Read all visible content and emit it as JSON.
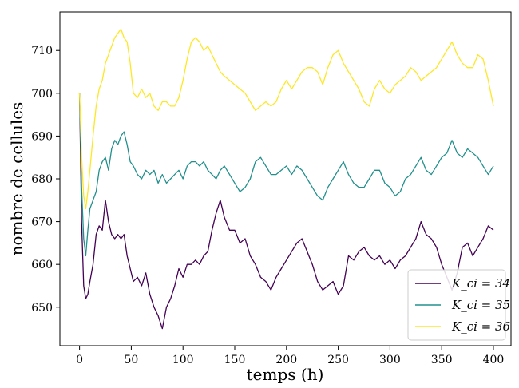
{
  "chart_data": {
    "type": "line",
    "title": "",
    "xlabel": "temps (h)",
    "ylabel": "nombre de cellules",
    "xlim": [
      -19,
      417
    ],
    "ylim": [
      641,
      719
    ],
    "xticks": [
      0,
      50,
      100,
      150,
      200,
      250,
      300,
      350,
      400
    ],
    "yticks": [
      650,
      660,
      670,
      680,
      690,
      700,
      710
    ],
    "grid": false,
    "legend_position": "lower-right",
    "series": [
      {
        "name": "K_ci = 34",
        "color": "#440154",
        "x": [
          0,
          2,
          4,
          6,
          8,
          10,
          13,
          16,
          19,
          22,
          25,
          28,
          31,
          34,
          37,
          40,
          43,
          46,
          49,
          52,
          56,
          60,
          64,
          68,
          72,
          76,
          80,
          84,
          88,
          92,
          96,
          100,
          104,
          108,
          112,
          116,
          120,
          124,
          128,
          132,
          136,
          140,
          145,
          150,
          155,
          160,
          165,
          170,
          175,
          180,
          185,
          190,
          195,
          200,
          205,
          210,
          215,
          220,
          225,
          230,
          235,
          240,
          245,
          250,
          255,
          260,
          265,
          270,
          275,
          280,
          285,
          290,
          295,
          300,
          305,
          310,
          315,
          320,
          325,
          330,
          335,
          340,
          345,
          350,
          355,
          360,
          365,
          370,
          375,
          380,
          385,
          390,
          395,
          400
        ],
        "y": [
          700,
          670,
          655,
          652,
          653,
          656,
          660,
          667,
          669,
          668,
          675,
          670,
          667,
          666,
          667,
          666,
          667,
          662,
          659,
          656,
          657,
          655,
          658,
          653,
          650,
          648,
          645,
          650,
          652,
          655,
          659,
          657,
          660,
          660,
          661,
          660,
          662,
          663,
          668,
          672,
          675,
          671,
          668,
          668,
          665,
          666,
          662,
          660,
          657,
          656,
          654,
          657,
          659,
          661,
          663,
          665,
          666,
          663,
          660,
          656,
          654,
          655,
          656,
          653,
          655,
          662,
          661,
          663,
          664,
          662,
          661,
          662,
          660,
          661,
          659,
          661,
          662,
          664,
          666,
          670,
          667,
          666,
          664,
          660,
          657,
          654,
          658,
          664,
          665,
          662,
          664,
          666,
          669,
          668
        ]
      },
      {
        "name": "K_ci = 35",
        "color": "#21908d",
        "x": [
          0,
          2,
          4,
          6,
          8,
          10,
          13,
          16,
          19,
          22,
          25,
          28,
          31,
          34,
          37,
          40,
          43,
          46,
          49,
          52,
          56,
          60,
          64,
          68,
          72,
          76,
          80,
          84,
          88,
          92,
          96,
          100,
          104,
          108,
          112,
          116,
          120,
          124,
          128,
          132,
          136,
          140,
          145,
          150,
          155,
          160,
          165,
          170,
          175,
          180,
          185,
          190,
          195,
          200,
          205,
          210,
          215,
          220,
          225,
          230,
          235,
          240,
          245,
          250,
          255,
          260,
          265,
          270,
          275,
          280,
          285,
          290,
          295,
          300,
          305,
          310,
          315,
          320,
          325,
          330,
          335,
          340,
          345,
          350,
          355,
          360,
          365,
          370,
          375,
          380,
          385,
          390,
          395,
          400
        ],
        "y": [
          700,
          678,
          666,
          662,
          668,
          673,
          675,
          677,
          682,
          684,
          685,
          682,
          687,
          689,
          688,
          690,
          691,
          688,
          684,
          683,
          681,
          680,
          682,
          681,
          682,
          679,
          681,
          679,
          680,
          681,
          682,
          680,
          683,
          684,
          684,
          683,
          684,
          682,
          681,
          680,
          682,
          683,
          681,
          679,
          677,
          678,
          680,
          684,
          685,
          683,
          681,
          681,
          682,
          683,
          681,
          683,
          682,
          680,
          678,
          676,
          675,
          678,
          680,
          682,
          684,
          681,
          679,
          678,
          678,
          680,
          682,
          682,
          679,
          678,
          676,
          677,
          680,
          681,
          683,
          685,
          682,
          681,
          683,
          685,
          686,
          689,
          686,
          685,
          687,
          686,
          685,
          683,
          681,
          683
        ]
      },
      {
        "name": "K_ci = 36",
        "color": "#fde725",
        "x": [
          0,
          2,
          4,
          6,
          8,
          10,
          13,
          16,
          19,
          22,
          25,
          28,
          31,
          34,
          37,
          40,
          43,
          46,
          49,
          52,
          56,
          60,
          64,
          68,
          72,
          76,
          80,
          84,
          88,
          92,
          96,
          100,
          104,
          108,
          112,
          116,
          120,
          124,
          128,
          132,
          136,
          140,
          145,
          150,
          155,
          160,
          165,
          170,
          175,
          180,
          185,
          190,
          195,
          200,
          205,
          210,
          215,
          220,
          225,
          230,
          235,
          240,
          245,
          250,
          255,
          260,
          265,
          270,
          275,
          280,
          285,
          290,
          295,
          300,
          305,
          310,
          315,
          320,
          325,
          330,
          335,
          340,
          345,
          350,
          355,
          360,
          365,
          370,
          375,
          380,
          385,
          390,
          395,
          400
        ],
        "y": [
          700,
          685,
          676,
          673,
          677,
          682,
          690,
          697,
          701,
          703,
          707,
          709,
          711,
          713,
          714,
          715,
          713,
          712,
          707,
          700,
          699,
          701,
          699,
          700,
          697,
          696,
          698,
          698,
          697,
          697,
          699,
          703,
          708,
          712,
          713,
          712,
          710,
          711,
          709,
          707,
          705,
          704,
          703,
          702,
          701,
          700,
          698,
          696,
          697,
          698,
          697,
          698,
          701,
          703,
          701,
          703,
          705,
          706,
          706,
          705,
          702,
          706,
          709,
          710,
          707,
          705,
          703,
          701,
          698,
          697,
          701,
          703,
          701,
          700,
          702,
          703,
          704,
          706,
          705,
          703,
          704,
          705,
          706,
          708,
          710,
          712,
          709,
          707,
          706,
          706,
          709,
          708,
          703,
          697
        ]
      }
    ]
  }
}
